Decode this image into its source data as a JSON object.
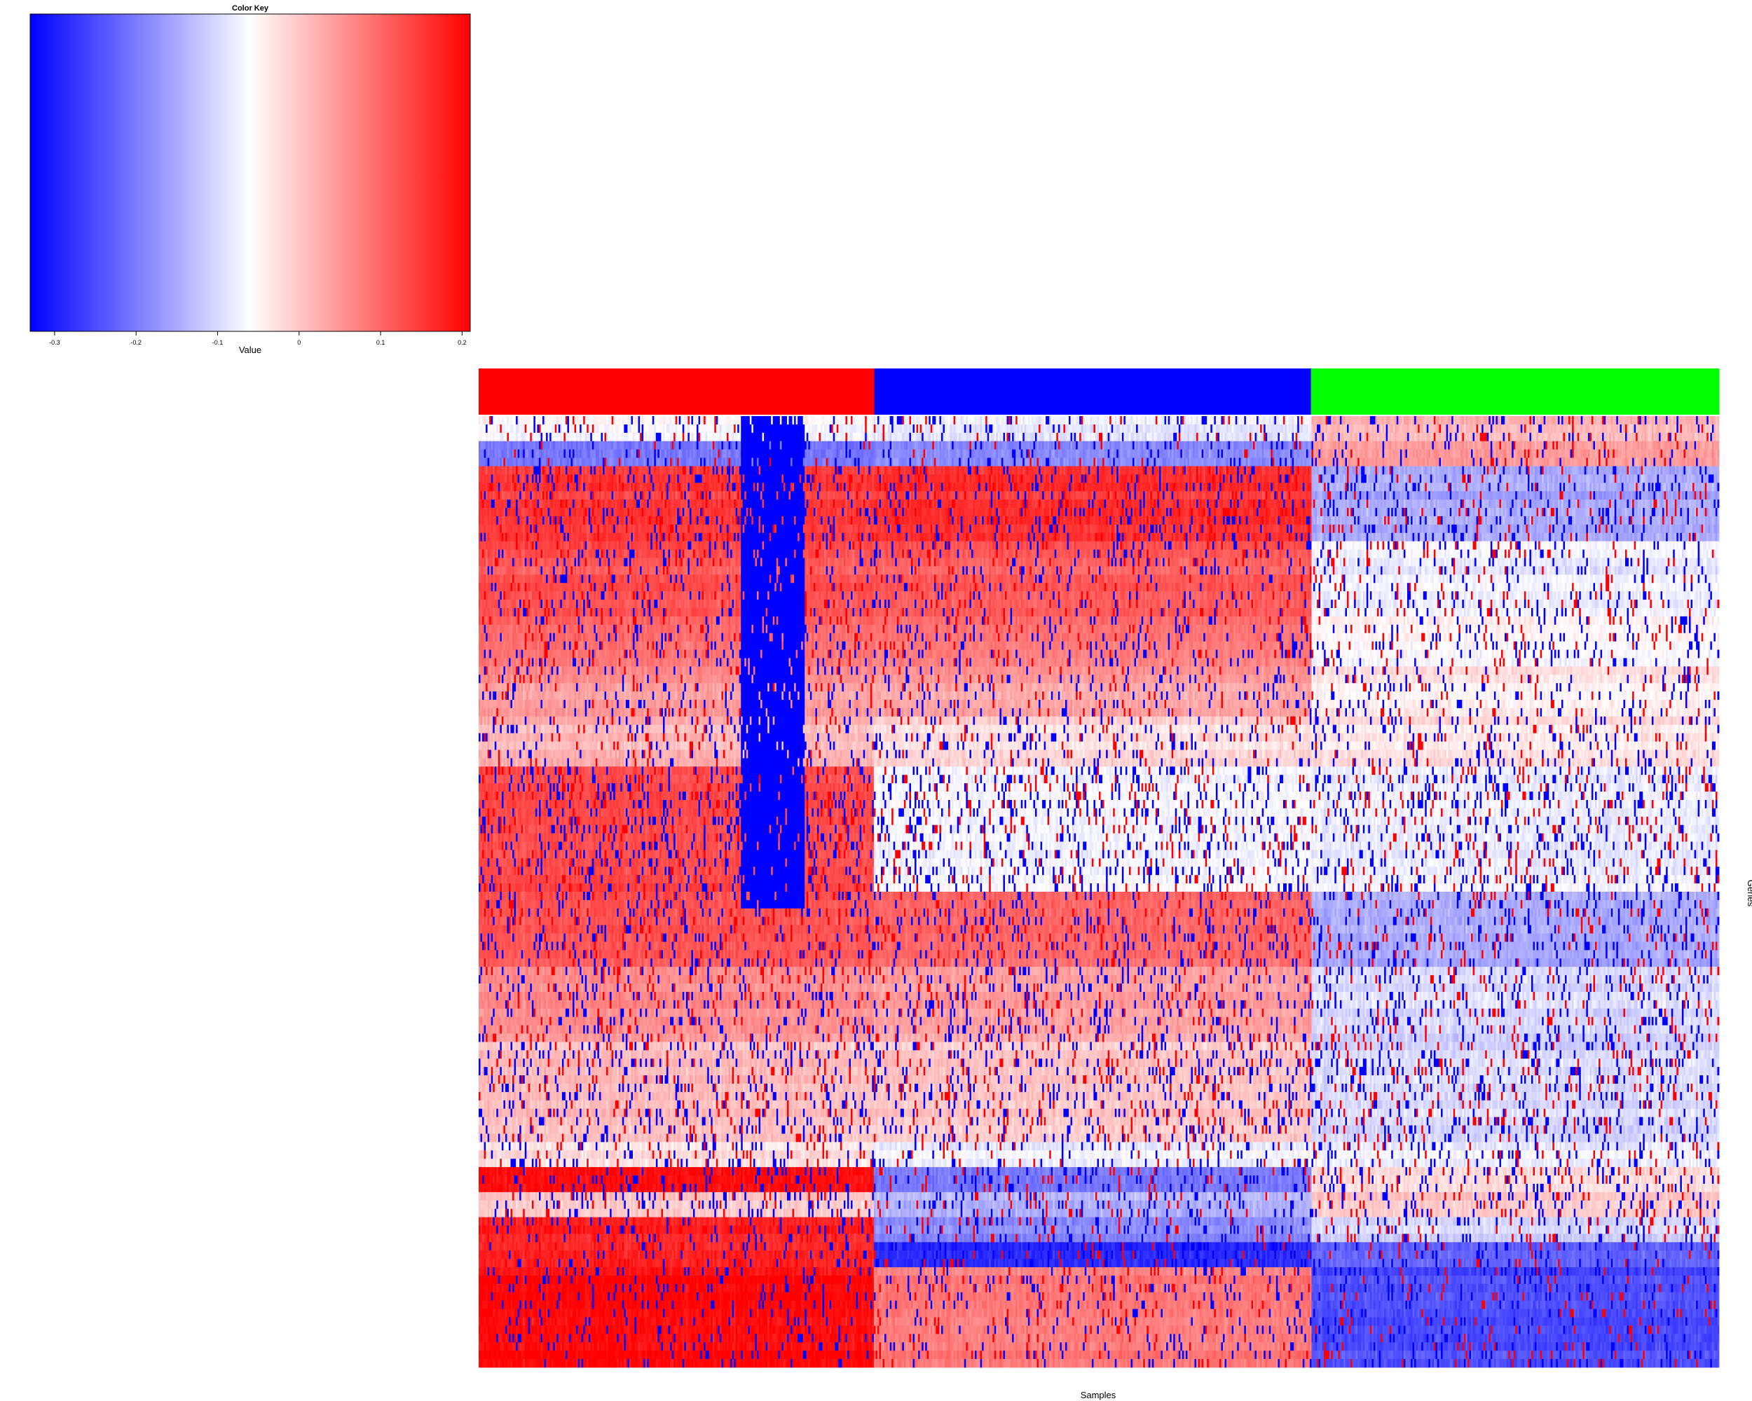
{
  "chart_data": {
    "type": "heatmap",
    "xlabel": "Samples",
    "ylabel": "Genes",
    "color_key": {
      "title": "Color Key",
      "xlabel": "Value",
      "range": [
        -0.33,
        0.21
      ],
      "ticks": [
        -0.3,
        -0.2,
        -0.1,
        0,
        0.1,
        0.2
      ],
      "tick_labels": [
        "-0.3",
        "-0.2",
        "-0.1",
        "0",
        "0.1",
        "0.2"
      ],
      "low_color": "#0000ff",
      "mid_color": "#ffffff",
      "high_color": "#ff0000",
      "mid_value": -0.06
    },
    "sample_groups": [
      {
        "color": "#ff0000",
        "fraction": 0.319
      },
      {
        "color": "#0000ff",
        "fraction": 0.352
      },
      {
        "color": "#00ff00",
        "fraction": 0.329
      }
    ],
    "gene_blocks": [
      {
        "rows": 1.0,
        "g1": -0.06,
        "g2": -0.08,
        "g3": 0.02,
        "noise": 0.35
      },
      {
        "rows": 1.0,
        "g1": -0.2,
        "g2": -0.18,
        "g3": 0.05,
        "noise": 0.25
      },
      {
        "rows": 3.0,
        "g1": 0.15,
        "g2": 0.16,
        "g3": -0.15,
        "noise": 0.4
      },
      {
        "rows": 3.0,
        "g1": 0.12,
        "g2": 0.11,
        "g3": -0.08,
        "noise": 0.35
      },
      {
        "rows": 2.0,
        "g1": 0.09,
        "g2": 0.08,
        "g3": -0.06,
        "noise": 0.35
      },
      {
        "rows": 2.0,
        "g1": 0.05,
        "g2": 0.04,
        "g3": -0.04,
        "noise": 0.3
      },
      {
        "rows": 2.0,
        "g1": 0.02,
        "g2": -0.02,
        "g3": -0.03,
        "noise": 0.35
      },
      {
        "rows": 5.0,
        "g1": 0.13,
        "g2": -0.07,
        "g3": -0.08,
        "noise": 0.45
      },
      {
        "rows": 3.0,
        "g1": 0.12,
        "g2": 0.1,
        "g3": -0.15,
        "noise": 0.4
      },
      {
        "rows": 3.0,
        "g1": 0.06,
        "g2": 0.04,
        "g3": -0.1,
        "noise": 0.4
      },
      {
        "rows": 4.0,
        "g1": 0.01,
        "g2": 0.0,
        "g3": -0.1,
        "noise": 0.45
      },
      {
        "rows": 1.0,
        "g1": -0.03,
        "g2": -0.08,
        "g3": -0.08,
        "noise": 0.35
      },
      {
        "rows": 1.0,
        "g1": 0.2,
        "g2": -0.2,
        "g3": -0.02,
        "noise": 0.4
      },
      {
        "rows": 1.0,
        "g1": 0.0,
        "g2": -0.14,
        "g3": 0.0,
        "noise": 0.4
      },
      {
        "rows": 1.0,
        "g1": 0.18,
        "g2": -0.18,
        "g3": -0.1,
        "noise": 0.35
      },
      {
        "rows": 1.0,
        "g1": 0.18,
        "g2": -0.28,
        "g3": -0.22,
        "noise": 0.3
      },
      {
        "rows": 4.0,
        "g1": 0.2,
        "g2": 0.08,
        "g3": -0.25,
        "noise": 0.3
      }
    ],
    "blue_stripe": {
      "start": 0.212,
      "end": 0.263,
      "last_row_fraction": 0.51
    }
  }
}
